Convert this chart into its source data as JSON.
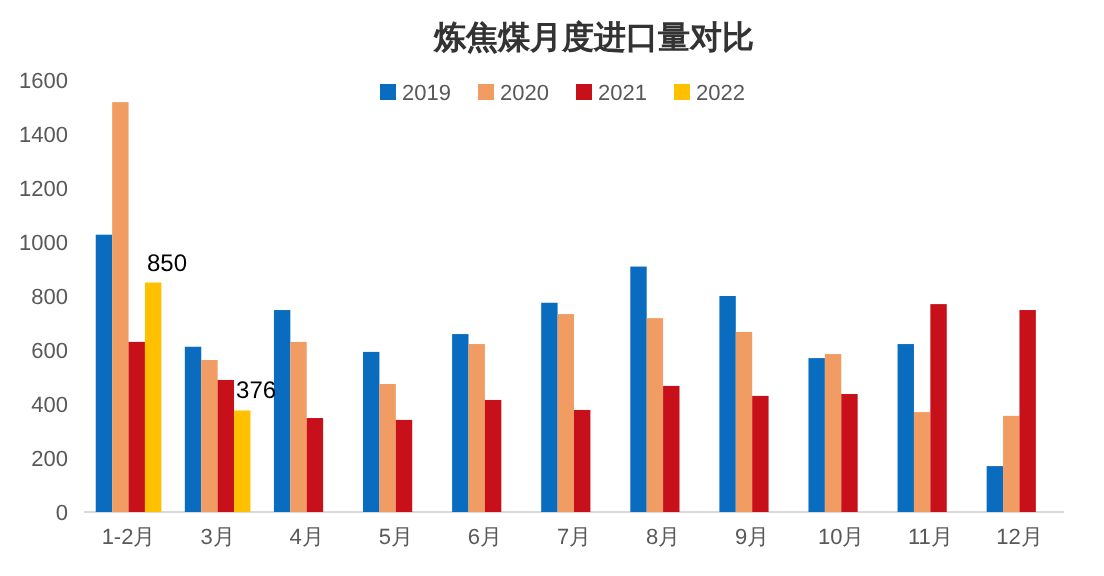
{
  "chart_data": {
    "type": "bar",
    "title": "炼焦煤月度进口量对比",
    "categories": [
      "1-2月",
      "3月",
      "4月",
      "5月",
      "6月",
      "7月",
      "8月",
      "9月",
      "10月",
      "11月",
      "12月"
    ],
    "series": [
      {
        "name": "2019",
        "color": "#0a6cbf",
        "values": [
          1027,
          612,
          748,
          593,
          659,
          775,
          909,
          800,
          570,
          622,
          170
        ]
      },
      {
        "name": "2020",
        "color": "#f09c62",
        "values": [
          1518,
          563,
          630,
          474,
          622,
          733,
          718,
          667,
          585,
          370,
          356
        ]
      },
      {
        "name": "2021",
        "color": "#c8101a",
        "values": [
          630,
          489,
          348,
          341,
          415,
          378,
          467,
          430,
          437,
          770,
          748
        ]
      },
      {
        "name": "2022",
        "color": "#ffc000",
        "values": [
          850,
          376,
          null,
          null,
          null,
          null,
          null,
          null,
          null,
          null,
          null
        ],
        "value_labels": [
          "850",
          "376",
          null,
          null,
          null,
          null,
          null,
          null,
          null,
          null,
          null
        ]
      }
    ],
    "ylim": [
      0,
      1600
    ],
    "yticks": [
      0,
      200,
      400,
      600,
      800,
      1000,
      1200,
      1400,
      1600
    ],
    "grid": false,
    "legend": "top"
  }
}
